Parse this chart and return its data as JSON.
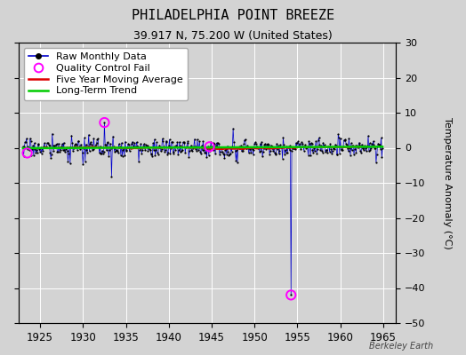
{
  "title": "PHILADELPHIA POINT BREEZE",
  "subtitle": "39.917 N, 75.200 W (United States)",
  "ylabel_right": "Temperature Anomaly (°C)",
  "xmin": 1922.5,
  "xmax": 1966.5,
  "ymin": -50,
  "ymax": 30,
  "yticks": [
    -50,
    -40,
    -30,
    -20,
    -10,
    0,
    10,
    20,
    30
  ],
  "xticks": [
    1925,
    1930,
    1935,
    1940,
    1945,
    1950,
    1955,
    1960,
    1965
  ],
  "background_color": "#d3d3d3",
  "grid_color": "#ffffff",
  "raw_line_color": "#0000cc",
  "raw_dot_color": "#000000",
  "ma_color": "#dd0000",
  "trend_color": "#00cc00",
  "qc_color": "#ff00ff",
  "watermark": "Berkeley Earth",
  "title_fontsize": 11,
  "subtitle_fontsize": 9,
  "legend_fontsize": 8,
  "seed": 17,
  "n_months": 504,
  "x_start_year": 1923.0,
  "big_spike_year": 1954.25,
  "big_spike_value": -42.0,
  "qc_years": [
    1923.5,
    1932.5,
    1944.75,
    1954.25
  ],
  "qc_vals": [
    -1.5,
    7.2,
    0.3,
    -42.0
  ],
  "notable_spikes": [
    [
      1932.5,
      7.2
    ],
    [
      1933.4,
      -8.2
    ],
    [
      1930.0,
      -4.8
    ],
    [
      1928.5,
      -4.5
    ],
    [
      1947.5,
      5.5
    ],
    [
      1948.0,
      -4.2
    ],
    [
      1936.5,
      -4.0
    ],
    [
      1944.75,
      0.3
    ]
  ]
}
